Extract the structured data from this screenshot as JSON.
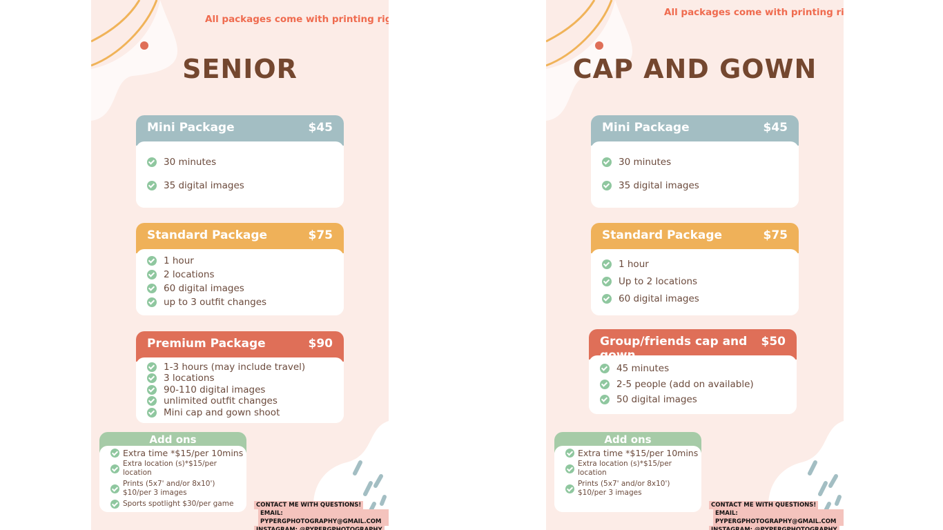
{
  "panels": [
    {
      "note": "All packages come with printing rights.",
      "title": "SENIOR",
      "packages": [
        {
          "name": "Mini Package",
          "price": "$45",
          "items": [
            "30 minutes",
            "35 digital images"
          ]
        },
        {
          "name": "Standard Package",
          "price": "$75",
          "items": [
            "1 hour",
            "2 locations",
            "60 digital images",
            "up to 3 outfit changes"
          ]
        },
        {
          "name": "Premium Package",
          "price": "$90",
          "items": [
            "1-3 hours (may include travel)",
            "3 locations",
            "90-110 digital images",
            "unlimited outfit changes",
            "Mini cap and gown shoot"
          ]
        }
      ],
      "addons": {
        "title": "Add ons",
        "items": [
          "Extra time *$15/per 10mins",
          "Extra location (s)*$15/per location",
          "Prints (5x7' and/or 8x10')\n$10/per 3 images",
          "Sports spotlight  $30/per game"
        ]
      },
      "contact": [
        "CONTACT ME WITH QUESTIONS!",
        "EMAIL: PYPERGPHOTOGRAPHY@GMAIL.COM",
        "INSTAGRAM: @PYPERGPHOTOGRAPHY"
      ]
    },
    {
      "note": "All packages come with printing rights.",
      "title": "CAP AND GOWN",
      "packages": [
        {
          "name": "Mini Package",
          "price": "$45",
          "items": [
            "30 minutes",
            "35 digital images"
          ]
        },
        {
          "name": "Standard Package",
          "price": "$75",
          "items": [
            "1 hour",
            "Up to 2 locations",
            "60 digital images"
          ]
        },
        {
          "name": "Group/friends cap and gown",
          "price": "$50",
          "items": [
            "45 minutes",
            "2-5 people (add on available)",
            "50 digital images"
          ]
        }
      ],
      "addons": {
        "title": "Add ons",
        "items": [
          "Extra time *$15/per 10mins",
          "Extra location (s)*$15/per location",
          "Prints (5x7' and/or 8x10')\n$10/per 3 images"
        ]
      },
      "contact": [
        "CONTACT ME WITH QUESTIONS!",
        "EMAIL: PYPERGPHOTOGRAPHY@GMAIL.COM",
        "INSTAGRAM: @PYPERGPHOTOGRAPHY"
      ]
    }
  ]
}
